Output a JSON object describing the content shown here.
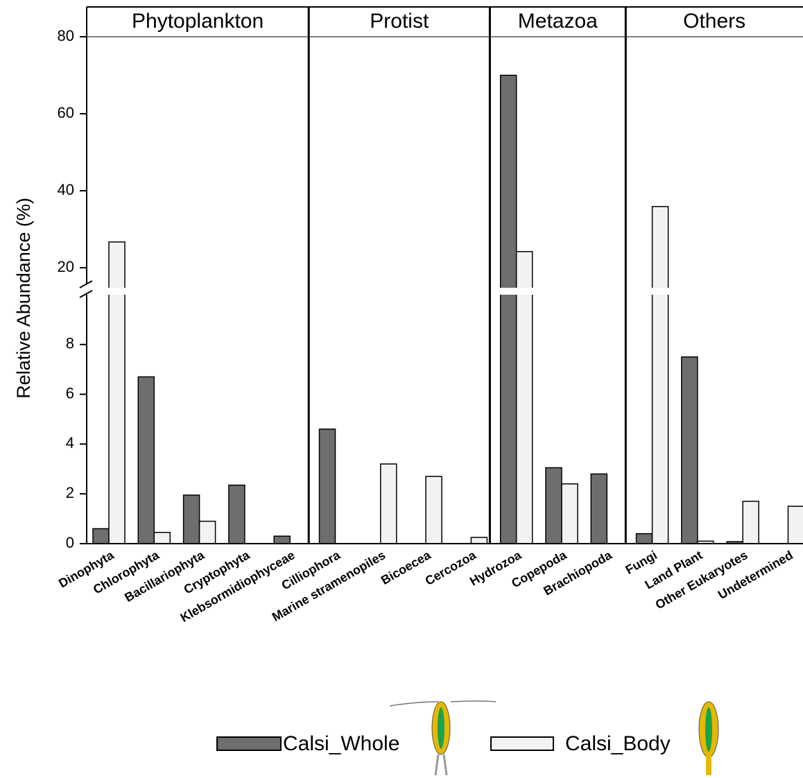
{
  "chart_data": {
    "type": "grouped-bar",
    "y_label": "Relative Abundance (%)",
    "groups": [
      {
        "label": "Phytoplankton",
        "categories": [
          "Dinophyta",
          "Chlorophyta",
          "Bacillariophyta",
          "Cryptophyta",
          "Klebsormidiophyceae"
        ]
      },
      {
        "label": "Protist",
        "categories": [
          "Cilliophora",
          "Marine stramenopiles",
          "Bicoecea",
          "Cercozoa"
        ]
      },
      {
        "label": "Metazoa",
        "categories": [
          "Hydrozoa",
          "Copepoda",
          "Brachiopoda"
        ]
      },
      {
        "label": "Others",
        "categories": [
          "Fungi",
          "Land Plant",
          "Other Eukaryotes",
          "Undetermined"
        ]
      }
    ],
    "series": [
      {
        "name": "Calsi_Whole",
        "color": "#6e6e6e",
        "values": [
          0.6,
          6.7,
          1.95,
          2.35,
          0.3,
          4.6,
          0,
          0,
          0,
          70,
          3.05,
          2.8,
          0.4,
          7.5,
          0.08,
          0
        ]
      },
      {
        "name": "Calsi_Body",
        "color": "#f2f2f2",
        "values": [
          26.7,
          0.45,
          0.9,
          0,
          0,
          0,
          3.2,
          2.7,
          0.25,
          24.2,
          2.4,
          0,
          35.9,
          0.1,
          1.7,
          1.5
        ]
      }
    ],
    "ylim_lower": [
      0,
      10
    ],
    "yticks_lower": [
      0,
      2,
      4,
      6,
      8
    ],
    "ylim_upper": [
      13,
      80
    ],
    "yticks_upper": [
      20,
      40,
      60,
      80
    ]
  }
}
